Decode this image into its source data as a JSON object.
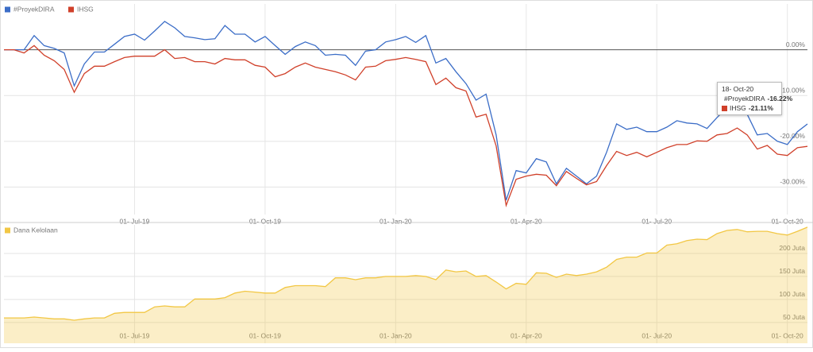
{
  "chart_data": [
    {
      "type": "line",
      "legend": "top-left",
      "categories": [
        null,
        null,
        null,
        null,
        null,
        null,
        null,
        null,
        null,
        null,
        null,
        null,
        null,
        "01- Jul-19",
        null,
        null,
        null,
        null,
        null,
        null,
        null,
        null,
        null,
        null,
        null,
        null,
        "01- Oct-19",
        null,
        null,
        null,
        null,
        null,
        null,
        null,
        null,
        null,
        null,
        null,
        null,
        "01- Jan-20",
        null,
        null,
        null,
        null,
        null,
        null,
        null,
        null,
        null,
        null,
        null,
        null,
        "01- Apr-20",
        null,
        null,
        null,
        null,
        null,
        null,
        null,
        null,
        null,
        null,
        null,
        null,
        "01- Jul-20",
        null,
        null,
        null,
        null,
        null,
        null,
        null,
        null,
        null,
        null,
        null,
        null,
        "01- Oct-20",
        null,
        null
      ],
      "series": [
        {
          "name": "#ProyekDIRA",
          "color": "#3b6dc7",
          "values": [
            0,
            0,
            0,
            3.1,
            0.9,
            0.3,
            -0.7,
            -7.9,
            -3.1,
            -0.5,
            -0.5,
            1.2,
            2.9,
            3.4,
            2.1,
            4.1,
            6.2,
            4.8,
            2.9,
            2.6,
            2.2,
            2.4,
            5.3,
            3.4,
            3.4,
            1.7,
            2.9,
            0.9,
            -1,
            0.7,
            1.7,
            0.9,
            -1.2,
            -1,
            -1.2,
            -3.4,
            -0.3,
            0,
            1.7,
            2.2,
            2.9,
            1.6,
            3.1,
            -2.9,
            -1.9,
            -4.8,
            -7.4,
            -11,
            -9.7,
            -18.6,
            -32.9,
            -26.4,
            -26.9,
            -23.8,
            -24.5,
            -29.3,
            -25.9,
            -27.6,
            -29.3,
            -27.6,
            -22.4,
            -16.2,
            -17.4,
            -16.9,
            -17.9,
            -17.9,
            -16.9,
            -15.5,
            -16,
            -16.2,
            -17.2,
            -14.8,
            -12.6,
            -13.1,
            -14.1,
            -18.6,
            -18.3,
            -20,
            -20.7,
            -17.9,
            -16.22
          ],
          "value_labels": [
            null,
            null,
            null,
            null,
            null,
            null,
            null,
            null,
            null,
            null,
            null,
            null,
            null,
            null,
            null,
            null,
            null,
            null,
            null,
            null,
            null,
            null,
            null,
            null,
            null,
            null,
            null,
            null,
            null,
            null,
            null,
            null,
            null,
            null,
            null,
            null,
            null,
            null,
            null,
            null,
            null,
            null,
            null,
            null,
            null,
            null,
            null,
            null,
            null,
            null,
            null,
            null,
            null,
            null,
            null,
            null,
            null,
            null,
            null,
            null,
            null,
            null,
            null,
            null,
            null,
            null,
            null,
            null,
            null,
            null,
            null,
            null,
            null,
            null,
            null,
            null,
            null,
            null,
            null,
            null,
            "-16.22%"
          ]
        },
        {
          "name": "IHSG",
          "color": "#d0402a",
          "values": [
            0,
            0,
            -0.7,
            0.9,
            -1.2,
            -2.4,
            -4.3,
            -9.3,
            -5.2,
            -3.6,
            -3.6,
            -2.6,
            -1.7,
            -1.4,
            -1.4,
            -1.4,
            0,
            -1.9,
            -1.7,
            -2.6,
            -2.6,
            -3.1,
            -1.9,
            -2.2,
            -2.2,
            -3.4,
            -3.8,
            -5.9,
            -5.2,
            -3.8,
            -2.9,
            -3.8,
            -4.3,
            -4.8,
            -5.5,
            -6.6,
            -3.8,
            -3.6,
            -2.4,
            -2.1,
            -1.7,
            -2.1,
            -2.6,
            -7.6,
            -6.2,
            -8.3,
            -9,
            -14.7,
            -14.1,
            -21,
            -34,
            -28.3,
            -27.6,
            -27.2,
            -27.4,
            -29.7,
            -26.6,
            -28.1,
            -29.5,
            -28.8,
            -25.3,
            -22.2,
            -23.1,
            -22.4,
            -23.4,
            -22.4,
            -21.4,
            -20.7,
            -20.7,
            -19.9,
            -20,
            -18.6,
            -18.3,
            -17.1,
            -18.6,
            -21.7,
            -20.9,
            -22.8,
            -23.1,
            -21.4,
            -21.11
          ],
          "value_labels": [
            null,
            null,
            null,
            null,
            null,
            null,
            null,
            null,
            null,
            null,
            null,
            null,
            null,
            null,
            null,
            null,
            null,
            null,
            null,
            null,
            null,
            null,
            null,
            null,
            null,
            null,
            null,
            null,
            null,
            null,
            null,
            null,
            null,
            null,
            null,
            null,
            null,
            null,
            null,
            null,
            null,
            null,
            null,
            null,
            null,
            null,
            null,
            null,
            null,
            null,
            null,
            null,
            null,
            null,
            null,
            null,
            null,
            null,
            null,
            null,
            null,
            null,
            null,
            null,
            null,
            null,
            null,
            null,
            null,
            null,
            null,
            null,
            null,
            null,
            null,
            null,
            null,
            null,
            null,
            null,
            "-21.11%"
          ]
        }
      ],
      "ylim": [
        -36,
        10
      ],
      "yticks": [
        {
          "value": 0,
          "label": "0.00%"
        },
        {
          "value": -10,
          "label": "-10.00%"
        },
        {
          "value": -20,
          "label": "-20.00%"
        },
        {
          "value": -30,
          "label": "-30.00%"
        }
      ],
      "grid": true,
      "tooltip": {
        "title": "18- Oct-20"
      }
    },
    {
      "type": "area",
      "legend": "top-left",
      "categories": [
        null,
        null,
        null,
        null,
        null,
        null,
        null,
        null,
        null,
        null,
        null,
        null,
        null,
        "01- Jul-19",
        null,
        null,
        null,
        null,
        null,
        null,
        null,
        null,
        null,
        null,
        null,
        null,
        "01- Oct-19",
        null,
        null,
        null,
        null,
        null,
        null,
        null,
        null,
        null,
        null,
        null,
        null,
        "01- Jan-20",
        null,
        null,
        null,
        null,
        null,
        null,
        null,
        null,
        null,
        null,
        null,
        null,
        "01- Apr-20",
        null,
        null,
        null,
        null,
        null,
        null,
        null,
        null,
        null,
        null,
        null,
        null,
        "01- Jul-20",
        null,
        null,
        null,
        null,
        null,
        null,
        null,
        null,
        null,
        null,
        null,
        null,
        "01- Oct-20",
        null,
        null
      ],
      "series": [
        {
          "name": "Dana Kelolaan",
          "color": "#f2c744",
          "values": [
            60,
            60,
            60,
            62,
            60,
            58,
            58,
            55,
            58,
            60,
            60,
            70,
            72,
            72,
            72,
            84,
            86,
            84,
            84,
            101,
            101,
            101,
            104,
            114,
            118,
            116,
            114,
            114,
            126,
            130,
            130,
            130,
            128,
            147,
            147,
            143,
            147,
            147,
            150,
            150,
            150,
            152,
            150,
            143,
            164,
            160,
            162,
            150,
            152,
            138,
            123,
            135,
            133,
            158,
            157,
            148,
            155,
            152,
            155,
            160,
            170,
            187,
            192,
            192,
            201,
            201,
            218,
            221,
            228,
            231,
            230,
            243,
            250,
            252,
            247,
            248,
            248,
            243,
            240,
            248,
            257
          ]
        }
      ],
      "ylim": [
        5,
        262
      ],
      "yticks": [
        {
          "value": 50,
          "label": "50 Juta"
        },
        {
          "value": 100,
          "label": "100 Juta"
        },
        {
          "value": 150,
          "label": "150 Juta"
        },
        {
          "value": 200,
          "label": "200 Juta"
        }
      ],
      "grid": true
    }
  ]
}
